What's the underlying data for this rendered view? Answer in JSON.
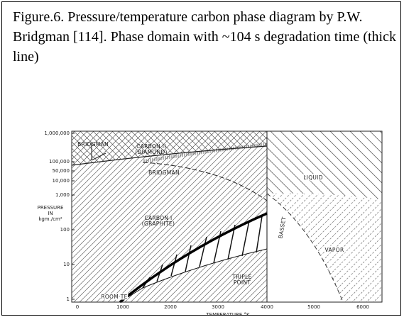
{
  "caption": "Figure.6. Pressure/temperature carbon phase diagram by P.W. Bridgman [114]. Phase domain with ~104 s degradation time (thick line)",
  "figure": {
    "yticks": [
      "1,000,000",
      "100,000",
      "50,000",
      "10,000",
      "1,000",
      "100",
      "10",
      "1"
    ],
    "xticks": [
      "0",
      "1000",
      "2000",
      "3000",
      "4000",
      "5000",
      "6000"
    ],
    "y_axis_label": [
      "PRESSURE",
      "IN",
      "kgm./cm²"
    ],
    "x_axis_label": "TEMPERATURE °K",
    "region_labels": [
      "BRIDGMAN",
      "CARBON II",
      "(DIAMOND)",
      "BRIDGMAN",
      "LIQUID",
      "CARBON I",
      "(GRAPHITE)",
      "BASSET",
      "TRIPLE",
      "POINT",
      "VAPOR",
      "ROOM TE"
    ]
  }
}
